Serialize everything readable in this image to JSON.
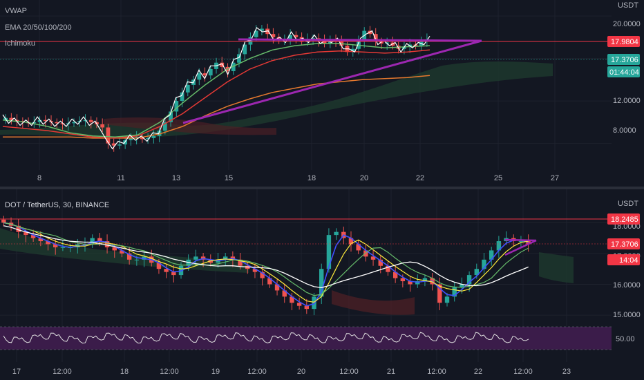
{
  "top_panel": {
    "indicators": [
      "VWAP",
      "EMA 20/50/100/200",
      "Ichimoku"
    ],
    "currency": "USDT",
    "y_ticks": [
      "20.0000",
      "12.0000",
      "8.0000"
    ],
    "price_tags": [
      {
        "text": "17.9804",
        "color": "#f23645"
      },
      {
        "text": "17.3706",
        "color": "#26a69a"
      },
      {
        "text": "01:44:04",
        "color": "#26a69a"
      }
    ],
    "x_ticks": [
      "8",
      "11",
      "13",
      "15",
      "18",
      "20",
      "22",
      "25",
      "27"
    ]
  },
  "bottom_panel": {
    "title": "DOT / TetherUS, 30, BINANCE",
    "currency": "USDT",
    "y_ticks": [
      "18.0000",
      "17.0000",
      "16.0000",
      "15.0000",
      "50.00"
    ],
    "price_tags": [
      {
        "text": "18.2485",
        "color": "#f23645"
      },
      {
        "text": "17.3706",
        "color": "#f23645"
      },
      {
        "text": "14:04",
        "color": "#f23645"
      }
    ],
    "x_ticks": [
      "17",
      "12:00",
      "18",
      "12:00",
      "19",
      "12:00",
      "20",
      "12:00",
      "21",
      "12:00",
      "22",
      "12:00",
      "23"
    ]
  },
  "colors": {
    "background": "#131722",
    "up": "#26a69a",
    "down": "#ef5350",
    "resistance": "#f23645",
    "trendline": "#9c27b0",
    "rsi_band": "#4a1a5c",
    "text": "#b2b5be"
  },
  "chart_data": [
    {
      "type": "candlestick",
      "title": "",
      "indicators": [
        "VWAP",
        "EMA 20/50/100/200",
        "Ichimoku"
      ],
      "ylim": [
        5.5,
        21.5
      ],
      "y_ticks": [
        20,
        12,
        8
      ],
      "x_ticks": [
        "8",
        "11",
        "13",
        "15",
        "18",
        "20",
        "22",
        "25",
        "27"
      ],
      "close": [
        10.4,
        10.2,
        10.1,
        10.0,
        9.9,
        10.0,
        10.2,
        10.1,
        10.0,
        9.9,
        9.8,
        9.9,
        10.0,
        10.1,
        10.2,
        10.0,
        9.8,
        9.5,
        8.0,
        7.8,
        7.9,
        8.3,
        8.5,
        8.6,
        8.4,
        8.5,
        8.7,
        9.2,
        10.0,
        11.0,
        12.0,
        12.8,
        13.5,
        14.0,
        14.6,
        14.4,
        15.0,
        15.6,
        15.2,
        14.8,
        15.6,
        16.4,
        17.3,
        18.0,
        18.6,
        18.8,
        18.3,
        18.0,
        17.7,
        17.8,
        18.2,
        18.0,
        17.6,
        17.8,
        17.9,
        17.7,
        17.4,
        17.8,
        17.6,
        17.2,
        16.6,
        16.9,
        17.6,
        18.6,
        18.3,
        17.6,
        17.4,
        17.5,
        17.2,
        16.9,
        17.1,
        17.3,
        17.2,
        17.6,
        17.8
      ],
      "ema_20": [
        10.2,
        10.0,
        9.6,
        9.0,
        8.7,
        8.6,
        8.8,
        10.0,
        11.8,
        13.5,
        15.0,
        16.0,
        16.8,
        17.2,
        17.4,
        17.4,
        17.2,
        17.0,
        17.1,
        17.2
      ],
      "ema_50": [
        9.6,
        9.4,
        9.2,
        8.9,
        8.6,
        8.5,
        8.7,
        9.6,
        10.8,
        12.3,
        13.8,
        15.0,
        15.8,
        16.3,
        16.6,
        16.7,
        16.6,
        16.5,
        16.6,
        16.8
      ],
      "ema_200": [
        8.6,
        8.6,
        8.6,
        8.6,
        8.5,
        8.5,
        8.5,
        8.9,
        9.6,
        10.6,
        11.5,
        12.2,
        12.8,
        13.2,
        13.6,
        13.8,
        14.0,
        14.1,
        14.2,
        14.4
      ],
      "resistance": 17.9804,
      "trendline_top": 18.5,
      "last_price": 17.3706
    },
    {
      "type": "candlestick",
      "title": "DOT / TetherUS, 30, BINANCE",
      "ylim": [
        14.8,
        18.5
      ],
      "x_ticks": [
        "17",
        "12:00",
        "18",
        "12:00",
        "19",
        "12:00",
        "20",
        "12:00",
        "21",
        "12:00",
        "22",
        "12:00",
        "23"
      ],
      "close": [
        18.0,
        17.9,
        17.7,
        17.6,
        17.5,
        17.4,
        17.3,
        17.2,
        17.2,
        17.2,
        17.3,
        17.3,
        17.5,
        17.4,
        17.2,
        17.1,
        17.0,
        16.8,
        16.8,
        16.9,
        16.7,
        16.5,
        16.4,
        16.3,
        16.6,
        16.8,
        16.9,
        16.8,
        16.7,
        16.8,
        16.9,
        16.8,
        16.6,
        16.5,
        16.4,
        16.2,
        16.0,
        15.8,
        15.6,
        15.4,
        15.3,
        15.2,
        15.6,
        16.5,
        17.6,
        17.7,
        17.5,
        17.3,
        17.1,
        16.9,
        16.8,
        16.6,
        16.4,
        16.2,
        16.1,
        16.0,
        16.1,
        16.2,
        16.0,
        15.4,
        15.6,
        15.9,
        16.0,
        16.3,
        16.5,
        16.8,
        17.1,
        17.4,
        17.5,
        17.4,
        17.4,
        17.3
      ],
      "resistance": 18.2485,
      "last_price": 17.3706,
      "rsi": {
        "level": 50,
        "range": [
          30,
          70
        ]
      }
    }
  ]
}
